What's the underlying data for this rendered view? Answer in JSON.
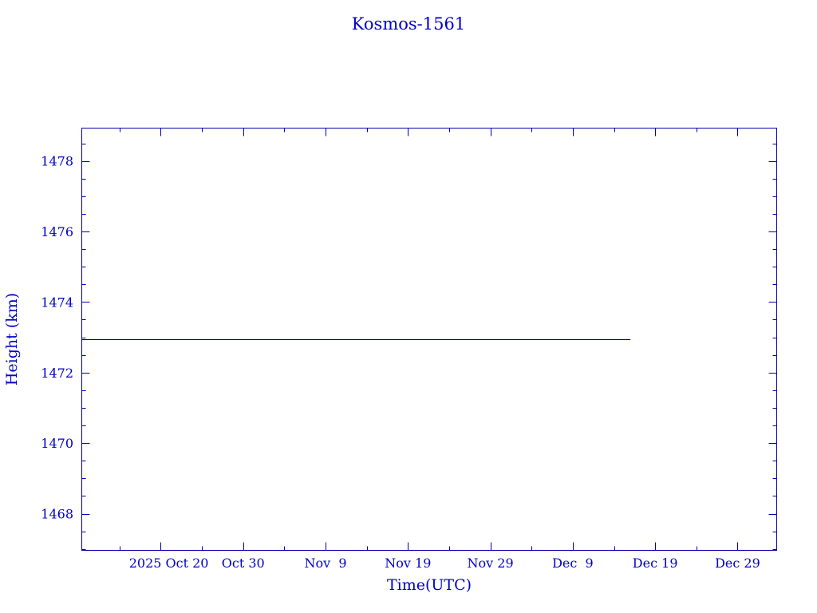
{
  "chart_data": {
    "type": "line",
    "title": "Kosmos-1561",
    "xlabel": "Time(UTC)",
    "ylabel": "Height (km)",
    "x_ticks": [
      "2025 Oct 20",
      "2025-10-30",
      "2025-11-09",
      "2025-11-19",
      "2025-11-29",
      "2025-12-09",
      "2025-12-19",
      "2025-12-29"
    ],
    "x_tick_labels": [
      "2025 Oct 20",
      "Oct 30",
      "Nov  9",
      "Nov 19",
      "Nov 29",
      "Dec  9",
      "Dec 19",
      "Dec 29"
    ],
    "x_tick_dates": [
      "2025-10-20",
      "2025-10-30",
      "2025-11-09",
      "2025-11-19",
      "2025-11-29",
      "2025-12-09",
      "2025-12-19",
      "2025-12-29"
    ],
    "xlim": [
      "2025-10-10T10:00",
      "2026-01-02T18:00"
    ],
    "y_ticks": [
      1468,
      1470,
      1472,
      1474,
      1476,
      1478
    ],
    "ylim": [
      1466.96,
      1478.93
    ],
    "grid": false,
    "series": [
      {
        "x": [
          "2025-10-10T10:00",
          "2025-12-16T00:00"
        ],
        "y": [
          1472.94,
          1472.94
        ],
        "color": "#000080"
      }
    ],
    "colors": {
      "axis": "#0000b0",
      "text": "#0000c8",
      "line": "#000080"
    }
  }
}
